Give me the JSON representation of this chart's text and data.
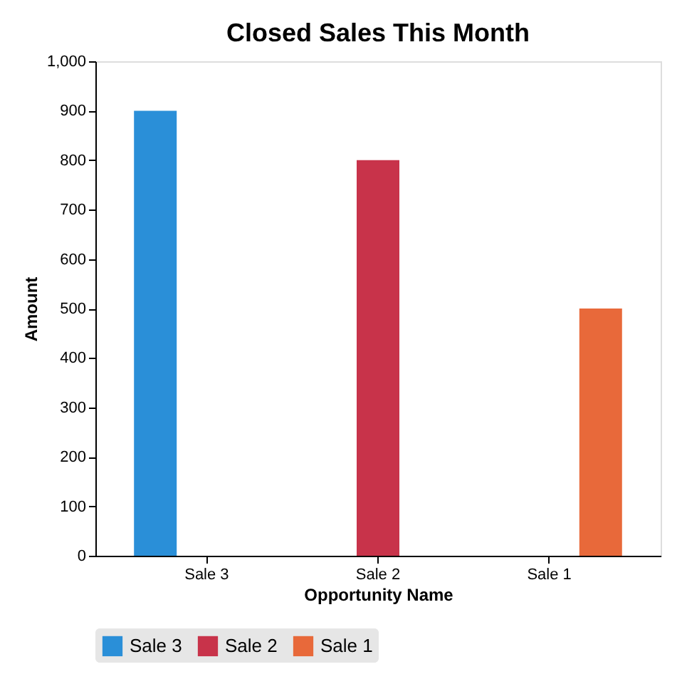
{
  "chart_data": {
    "type": "bar",
    "title": "Closed Sales This Month",
    "xlabel": "Opportunity Name",
    "ylabel": "Amount",
    "categories": [
      "Sale 3",
      "Sale 2",
      "Sale 1"
    ],
    "series": [
      {
        "name": "Sale 3",
        "color": "#2a8fd8",
        "values": [
          900,
          null,
          null
        ]
      },
      {
        "name": "Sale 2",
        "color": "#c8334a",
        "values": [
          null,
          800,
          null
        ]
      },
      {
        "name": "Sale 1",
        "color": "#e8693a",
        "values": [
          null,
          null,
          500
        ]
      }
    ],
    "ylim": [
      0,
      1000
    ],
    "yticks": [
      0,
      100,
      200,
      300,
      400,
      500,
      600,
      700,
      800,
      900,
      {
        "value": 1000,
        "label": "1,000"
      }
    ],
    "grid": false,
    "legend": "bottom"
  }
}
